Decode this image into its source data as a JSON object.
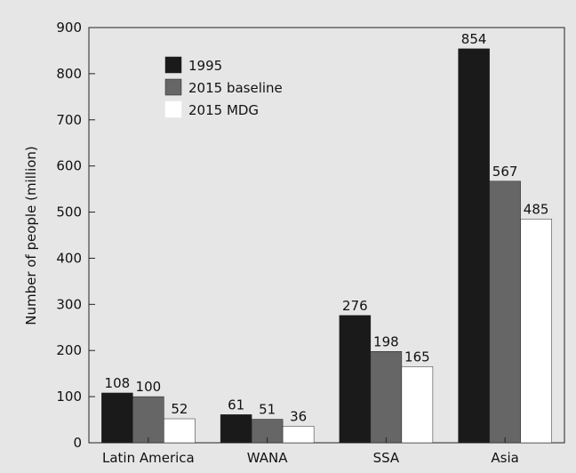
{
  "chart_data": {
    "type": "bar",
    "categories": [
      "Latin America",
      "WANA",
      "SSA",
      "Asia"
    ],
    "series": [
      {
        "name": "1995",
        "color": "#1a1a1a",
        "values": [
          108,
          61,
          276,
          854
        ]
      },
      {
        "name": "2015 baseline",
        "color": "#666666",
        "values": [
          100,
          51,
          198,
          567
        ]
      },
      {
        "name": "2015 MDG",
        "color": "#ffffff",
        "values": [
          52,
          36,
          165,
          485
        ]
      }
    ],
    "title": "",
    "xlabel": "",
    "ylabel": "Number of people (million)",
    "ylim": [
      0,
      900
    ],
    "yticks": [
      0,
      100,
      200,
      300,
      400,
      500,
      600,
      700,
      800,
      900
    ],
    "ytick_labels": [
      "0",
      "100",
      "200",
      "300",
      "400",
      "500",
      "600",
      "700",
      "800",
      "900"
    ],
    "grid": false,
    "legend": "top-left"
  }
}
